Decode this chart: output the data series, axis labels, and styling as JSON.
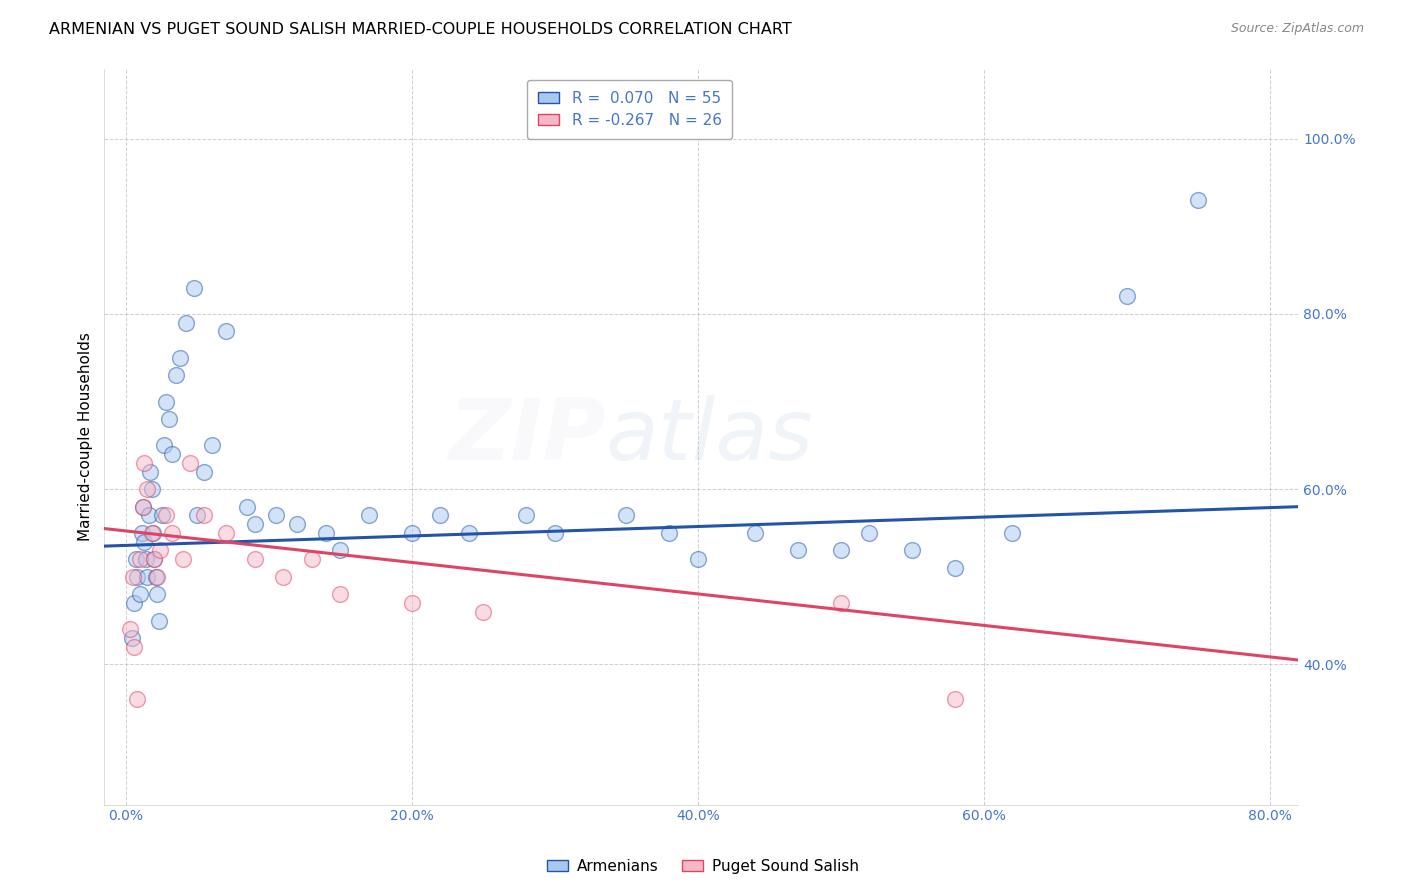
{
  "title": "ARMENIAN VS PUGET SOUND SALISH MARRIED-COUPLE HOUSEHOLDS CORRELATION CHART",
  "source": "Source: ZipAtlas.com",
  "xlabel_ticks": [
    "0.0%",
    "20.0%",
    "40.0%",
    "60.0%",
    "80.0%"
  ],
  "xlabel_tick_vals": [
    0.0,
    20.0,
    40.0,
    60.0,
    80.0
  ],
  "ylabel_ticks": [
    "100.0%",
    "80.0%",
    "60.0%",
    "40.0%"
  ],
  "ylabel_tick_vals": [
    100.0,
    80.0,
    60.0,
    40.0
  ],
  "xlim": [
    -1.5,
    82.0
  ],
  "ylim": [
    24.0,
    108.0
  ],
  "blue_color": "#A8C8F0",
  "pink_color": "#F4B8C8",
  "blue_line_color": "#2255AA",
  "pink_line_color": "#DD4466",
  "R_blue": 0.07,
  "N_blue": 55,
  "R_pink": -0.267,
  "N_pink": 26,
  "watermark_zip": "ZIP",
  "watermark_atlas": "atlas",
  "legend_label_blue": "Armenians",
  "legend_label_pink": "Puget Sound Salish",
  "ylabel": "Married-couple Households",
  "blue_line_start_y": 53.5,
  "blue_line_end_y": 58.0,
  "pink_line_start_y": 55.5,
  "pink_line_end_y": 40.5,
  "blue_scatter_x": [
    0.4,
    0.6,
    0.7,
    0.8,
    1.0,
    1.1,
    1.2,
    1.3,
    1.4,
    1.5,
    1.6,
    1.7,
    1.8,
    1.9,
    2.0,
    2.1,
    2.2,
    2.3,
    2.5,
    2.7,
    2.8,
    3.0,
    3.2,
    3.5,
    3.8,
    4.2,
    4.8,
    5.0,
    5.5,
    6.0,
    7.0,
    8.5,
    9.0,
    10.5,
    12.0,
    14.0,
    15.0,
    17.0,
    20.0,
    22.0,
    24.0,
    28.0,
    30.0,
    35.0,
    38.0,
    40.0,
    44.0,
    47.0,
    50.0,
    52.0,
    55.0,
    58.0,
    62.0,
    70.0,
    75.0
  ],
  "blue_scatter_y": [
    43.0,
    47.0,
    52.0,
    50.0,
    48.0,
    55.0,
    58.0,
    54.0,
    52.0,
    50.0,
    57.0,
    62.0,
    60.0,
    55.0,
    52.0,
    50.0,
    48.0,
    45.0,
    57.0,
    65.0,
    70.0,
    68.0,
    64.0,
    73.0,
    75.0,
    79.0,
    83.0,
    57.0,
    62.0,
    65.0,
    78.0,
    58.0,
    56.0,
    57.0,
    56.0,
    55.0,
    53.0,
    57.0,
    55.0,
    57.0,
    55.0,
    57.0,
    55.0,
    57.0,
    55.0,
    52.0,
    55.0,
    53.0,
    53.0,
    55.0,
    53.0,
    51.0,
    55.0,
    82.0,
    93.0
  ],
  "pink_scatter_x": [
    0.3,
    0.5,
    0.6,
    0.8,
    1.0,
    1.2,
    1.3,
    1.5,
    1.8,
    2.0,
    2.2,
    2.4,
    2.8,
    3.2,
    4.0,
    4.5,
    5.5,
    7.0,
    9.0,
    11.0,
    13.0,
    15.0,
    20.0,
    25.0,
    50.0,
    58.0
  ],
  "pink_scatter_y": [
    44.0,
    50.0,
    42.0,
    36.0,
    52.0,
    58.0,
    63.0,
    60.0,
    55.0,
    52.0,
    50.0,
    53.0,
    57.0,
    55.0,
    52.0,
    63.0,
    57.0,
    55.0,
    52.0,
    50.0,
    52.0,
    48.0,
    47.0,
    46.0,
    47.0,
    36.0
  ],
  "grid_color": "#BBBBBB",
  "background_color": "#FFFFFF",
  "scatter_size": 130,
  "scatter_alpha": 0.5,
  "title_fontsize": 11.5,
  "source_fontsize": 9,
  "tick_fontsize": 10,
  "ylabel_fontsize": 11,
  "legend_fontsize": 11,
  "watermark_fontsize_zip": 62,
  "watermark_fontsize_atlas": 62,
  "watermark_alpha": 0.07,
  "watermark_color_zip": "#AAAACC",
  "watermark_color_atlas": "#7799CC"
}
